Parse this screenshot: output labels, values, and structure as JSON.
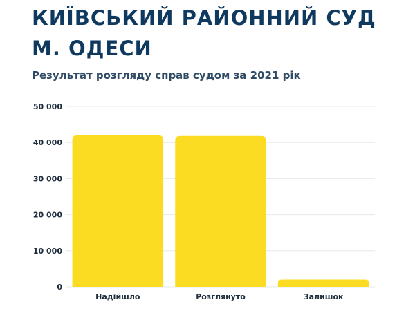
{
  "header": {
    "title": "КИЇВСЬКИЙ РАЙОННИЙ СУД М. ОДЕСИ",
    "subtitle": "Результат розгляду справ судом за 2021 рік"
  },
  "colors": {
    "title": "#10395f",
    "bar": "#fcdc22",
    "grid": "#e6e9ec"
  },
  "chart_data": {
    "type": "bar",
    "title": "Результат розгляду справ судом за 2021 рік",
    "categories": [
      "Надійшло",
      "Розглянуто",
      "Залишок"
    ],
    "values": [
      42000,
      41800,
      2000
    ],
    "ylim": [
      0,
      50000
    ],
    "yticks": [
      0,
      10000,
      20000,
      30000,
      40000,
      50000
    ],
    "ytick_labels": [
      "0",
      "10 000",
      "20 000",
      "30 000",
      "40 000",
      "50 000"
    ],
    "xlabel": "",
    "ylabel": "",
    "grid": true,
    "legend": "none"
  }
}
